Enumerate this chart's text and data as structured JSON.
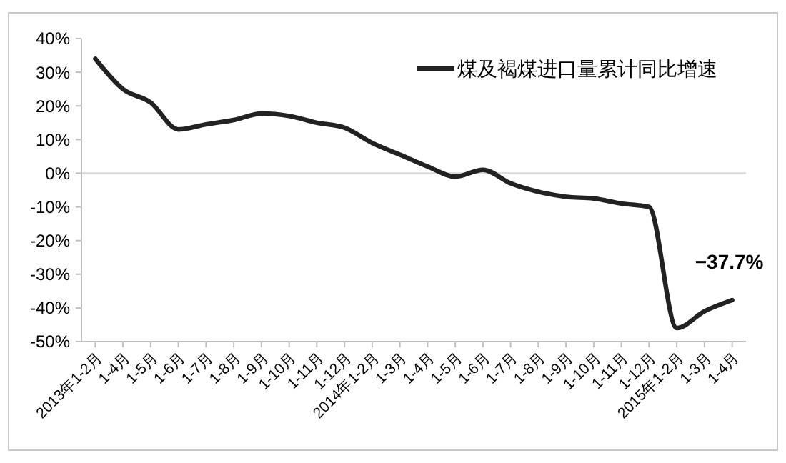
{
  "chart_data": {
    "type": "line",
    "categories": [
      "2013年1-2月",
      "1-4月",
      "1-5月",
      "1-6月",
      "1-7月",
      "1-8月",
      "1-9月",
      "1-10月",
      "1-11月",
      "1-12月",
      "2014年1-2月",
      "1-3月",
      "1-4月",
      "1-5月",
      "1-6月",
      "1-7月",
      "1-8月",
      "1-9月",
      "1-10月",
      "1-11月",
      "1-12月",
      "2015年1-2月",
      "1-3月",
      "1-4月"
    ],
    "series": [
      {
        "name": "煤及褐煤进口量累计同比增速",
        "color": "#222222",
        "values": [
          34,
          25,
          21,
          13,
          14.5,
          15.8,
          17.7,
          17,
          15,
          13.5,
          9,
          5.5,
          2,
          -1,
          1,
          -3,
          -5.5,
          -7,
          -7.5,
          -9,
          -10,
          -46,
          -41,
          -37.7
        ]
      }
    ],
    "ylim": [
      -50,
      40
    ],
    "yticks": [
      {
        "value": -50,
        "label": "-50%"
      },
      {
        "value": -40,
        "label": "-40%"
      },
      {
        "value": -30,
        "label": "-30%"
      },
      {
        "value": -20,
        "label": "-20%"
      },
      {
        "value": -10,
        "label": "-10%"
      },
      {
        "value": 0,
        "label": "0%"
      },
      {
        "value": 10,
        "label": "10%"
      },
      {
        "value": 20,
        "label": "20%"
      },
      {
        "value": 30,
        "label": "30%"
      },
      {
        "value": 40,
        "label": "40%"
      }
    ],
    "ref_lines": [
      {
        "axis": "y",
        "value": 0,
        "color": "#d9d9d9"
      }
    ],
    "annotations": [
      "−37.7%"
    ],
    "legend": "top right",
    "grid": false,
    "marker": "none",
    "line_style": "solid"
  }
}
